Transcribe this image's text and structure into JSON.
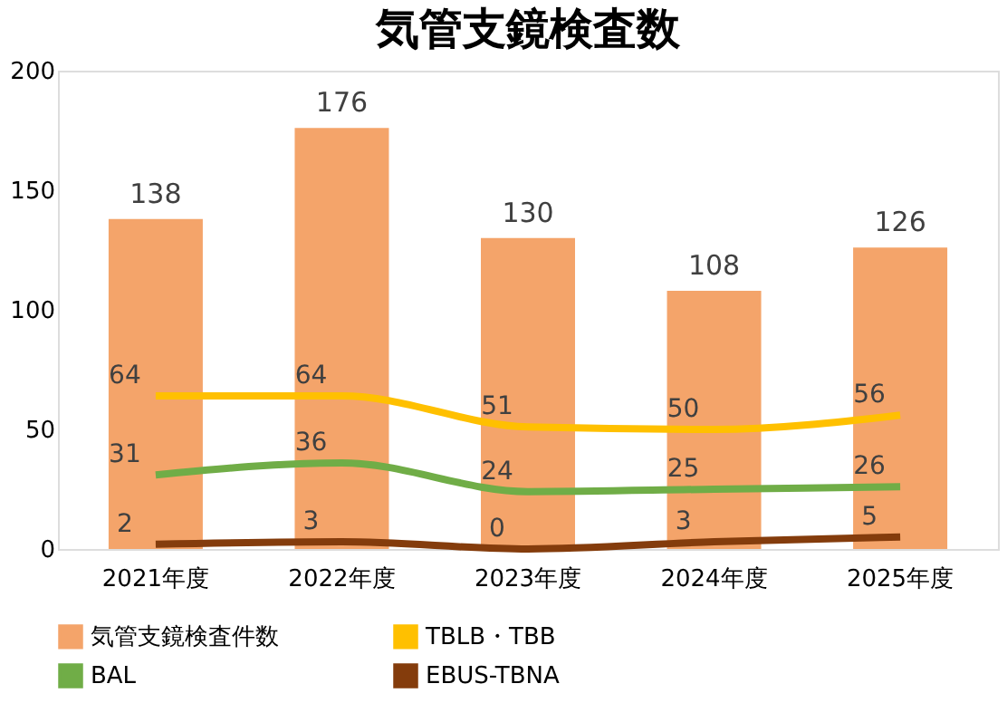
{
  "chart_data": {
    "type": "bar",
    "title": "気管支鏡検査数",
    "categories": [
      "2021年度",
      "2022年度",
      "2023年度",
      "2024年度",
      "2025年度"
    ],
    "series": [
      {
        "name": "気管支鏡検査件数",
        "color": "#f4a46a",
        "values": [
          138,
          176,
          130,
          108,
          126
        ]
      },
      {
        "name": "TBLB・TBB",
        "type": "line",
        "color": "#ffc000",
        "values": [
          64,
          64,
          51,
          50,
          56
        ]
      },
      {
        "name": "BAL",
        "type": "line",
        "color": "#70ad47",
        "values": [
          31,
          36,
          24,
          25,
          26
        ]
      },
      {
        "name": "EBUS-TBNA",
        "type": "line",
        "color": "#843c0c",
        "values": [
          2,
          3,
          0,
          3,
          5
        ]
      }
    ],
    "ylim": [
      0,
      200
    ],
    "yticks": [
      0,
      50,
      100,
      150,
      200
    ],
    "grid": false,
    "legend": "bottom",
    "data_labels": true
  }
}
